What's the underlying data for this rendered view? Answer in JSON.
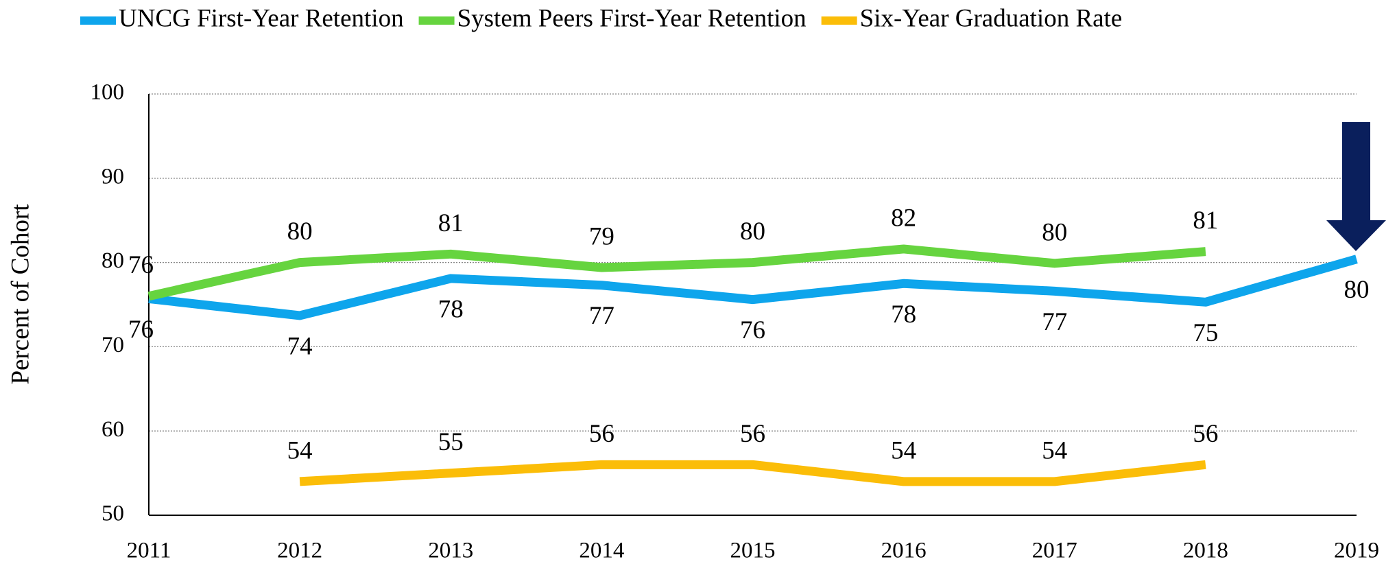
{
  "chart_data": {
    "type": "line",
    "x": [
      2011,
      2012,
      2013,
      2014,
      2015,
      2016,
      2017,
      2018,
      2019
    ],
    "series": [
      {
        "name": "UNCG First-Year Retention",
        "color": "#0ea5ec",
        "values": [
          75.7,
          73.7,
          78.1,
          77.3,
          75.6,
          77.5,
          76.6,
          75.3,
          80.4
        ],
        "value_labels": [
          "76",
          "74",
          "78",
          "77",
          "76",
          "78",
          "77",
          "75",
          "80"
        ]
      },
      {
        "name": "System Peers First-Year Retention",
        "color": "#66d43f",
        "values": [
          76.0,
          80.0,
          81.0,
          79.4,
          80.0,
          81.6,
          79.9,
          81.3,
          null
        ],
        "value_labels": [
          "76",
          "80",
          "81",
          "79",
          "80",
          "82",
          "80",
          "81",
          null
        ]
      },
      {
        "name": "Six-Year Graduation Rate",
        "color": "#fbbd08",
        "values": [
          null,
          54.0,
          55.0,
          56.0,
          56.0,
          54.0,
          54.0,
          56.0,
          null
        ],
        "value_labels": [
          null,
          "54",
          "55",
          "56",
          "56",
          "54",
          "54",
          "56",
          null
        ]
      }
    ],
    "y_label": "Percent of Cohort",
    "xlim": [
      2011,
      2019
    ],
    "xticks": [
      2011,
      2012,
      2013,
      2014,
      2015,
      2016,
      2017,
      2018,
      2019
    ],
    "ylim": [
      50,
      100
    ],
    "yticks": [
      50,
      60,
      70,
      80,
      90,
      100
    ],
    "grid": true,
    "legend": "top"
  }
}
